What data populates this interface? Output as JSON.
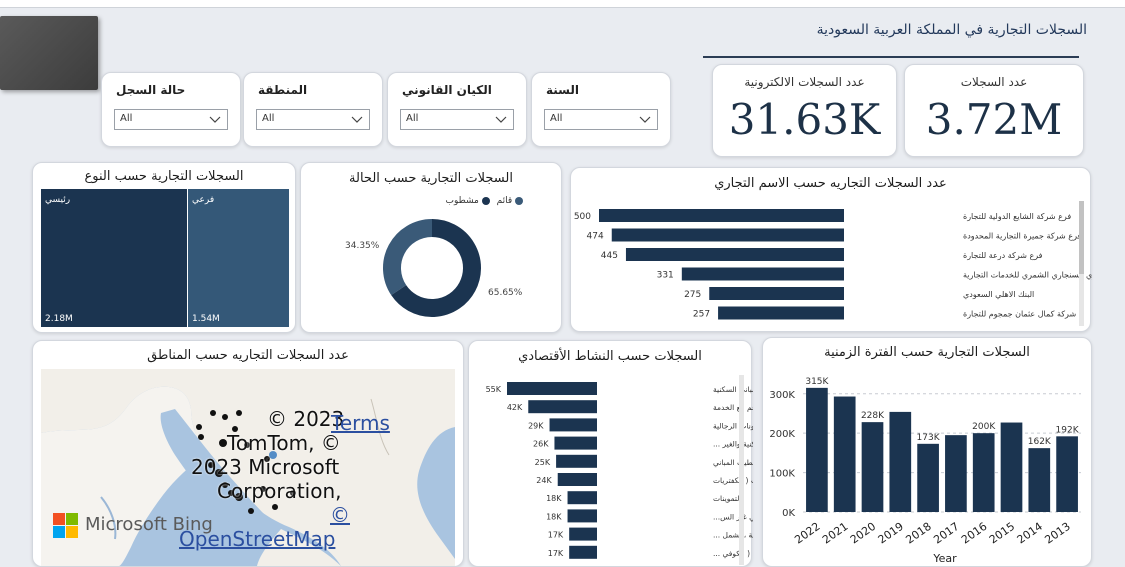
{
  "header": {
    "title": "السجلات التجارية في المملكة العربية السعودية"
  },
  "kpis": [
    {
      "label": "عدد السجلات",
      "value": "3.72M"
    },
    {
      "label": "عدد السجلات الالكترونية",
      "value": "31.63K"
    }
  ],
  "slicers": [
    {
      "label": "حالة السجل",
      "value": "All"
    },
    {
      "label": "المنطقة",
      "value": "All"
    },
    {
      "label": "الكيان القانوني",
      "value": "All"
    },
    {
      "label": "السنة",
      "value": "All"
    }
  ],
  "type_chart": {
    "title": "السجلات التجارية حسب النوع",
    "items": [
      {
        "label": "رئيسي",
        "value": "2.18M",
        "color": "#1b3450"
      },
      {
        "label": "فرعي",
        "value": "1.54M",
        "color": "#345878"
      }
    ]
  },
  "status_chart": {
    "title": "السجلات التجارية حسب الحالة",
    "legend": [
      "قائم",
      "مشطوب"
    ],
    "colors": [
      "#3a5a78",
      "#1b3450"
    ],
    "slices": [
      {
        "label": "قائم",
        "percent": 34.35,
        "text": "34.35%"
      },
      {
        "label": "مشطوب",
        "percent": 65.65,
        "text": "65.65%"
      }
    ]
  },
  "name_chart": {
    "title": "عدد السجلات التجاريه حسب الاسم التجاري",
    "color": "#1b3450",
    "bars": [
      {
        "label": "فرع شركة الشايع الدولية للتجارة",
        "value": 500
      },
      {
        "label": "فرع شركة جميرة التجارية المحدودة",
        "value": 474
      },
      {
        "label": "فرع شركة درعة للتجارة",
        "value": 445
      },
      {
        "label": "مكتب احمد حباوي السنجاري الشمري للخدمات التجارية",
        "value": 331
      },
      {
        "label": "البنك الاهلي السعودي",
        "value": 275
      },
      {
        "label": "شركة كمال عثمان جمجوم للتجارة",
        "value": 257
      }
    ]
  },
  "map": {
    "title": "عدد السجلات التجاريه حسب المناطق",
    "attribution_1": "© 2023",
    "attribution_terms": "Terms",
    "attribution_2": "TomTom, ©",
    "attribution_3": "2023 Microsoft",
    "attribution_4": "Corporation,",
    "attribution_5": "©",
    "attribution_osm": "OpenStreetMap",
    "bing_label": "Microsoft Bing"
  },
  "activity_chart": {
    "title": "السجلات حسب النشاط الأقتصادي",
    "color": "#1b3450",
    "bars": [
      {
        "label": "الإنشاءات العامة للمباني السكنية",
        "value": 55,
        "text": "55K"
      },
      {
        "label": "المطاعم مع الخدمة",
        "value": 42,
        "text": "42K"
      },
      {
        "label": "الصالونات الرجالية",
        "value": 29,
        "text": "29K"
      },
      {
        "label": "ترميمات المباني السكنية والغير ...",
        "value": 26,
        "text": "26K"
      },
      {
        "label": "تشطيب المباني",
        "value": 25,
        "text": "25K"
      },
      {
        "label": "( البوفيهات ( الكفتريات",
        "value": 24,
        "text": "24K"
      },
      {
        "label": "التموينات",
        "value": 18,
        "text": "18K"
      },
      {
        "label": "الانشاءات العامة للمباني غير الس...",
        "value": 18,
        "text": "18K"
      },
      {
        "label": "أنشطة الوجبات السريعة ، يشمل ...",
        "value": 17,
        "text": "17K"
      },
      {
        "label": "محلات تقديم المشروبات ( الكوفي ...",
        "value": 17,
        "text": "17K"
      }
    ]
  },
  "chart_data": {
    "type": "bar",
    "title": "السجلات التجارية حسب الفترة الزمنية",
    "xlabel": "Year",
    "ylabel": "",
    "categories": [
      "2022",
      "2021",
      "2020",
      "2019",
      "2018",
      "2017",
      "2016",
      "2015",
      "2014",
      "2013"
    ],
    "values": [
      315,
      293,
      228,
      254,
      173,
      195,
      200,
      227,
      162,
      192
    ],
    "data_labels": [
      "315K",
      "",
      "228K",
      "",
      "173K",
      "",
      "200K",
      "",
      "162K",
      "192K"
    ],
    "yticks": [
      "0K",
      "100K",
      "200K",
      "300K"
    ],
    "ylim": [
      0,
      340
    ],
    "grid": true,
    "color": "#1b3450"
  }
}
